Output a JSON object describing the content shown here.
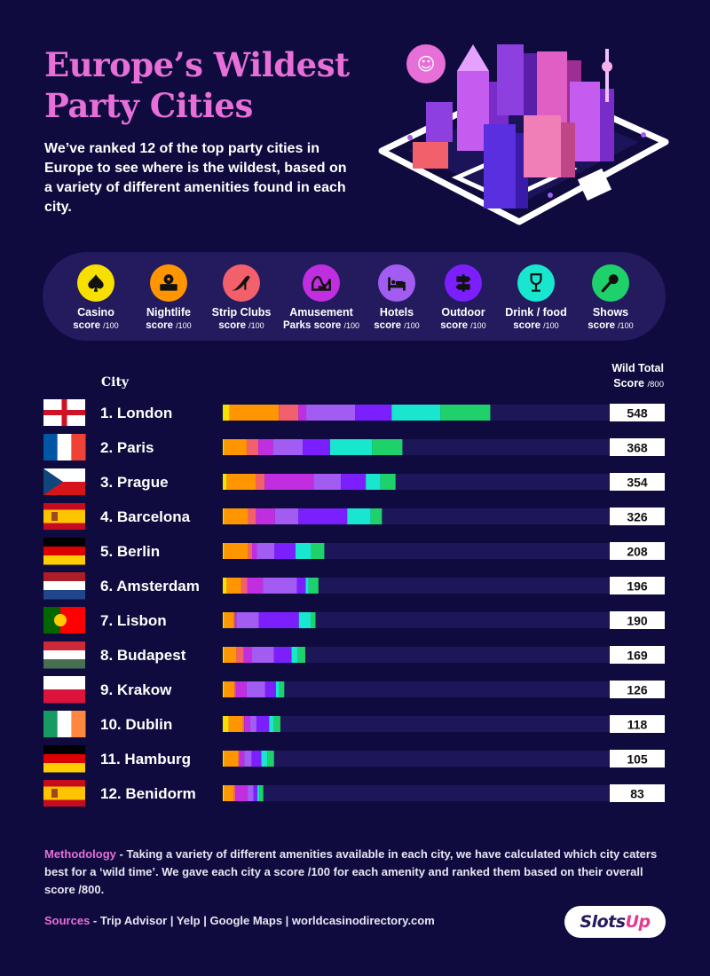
{
  "title": "Europe’s Wildest Party Cities",
  "intro": "We’ve ranked 12 of the top party cities in Europe to see where is the wildest, based on a variety of different amenities found in each city.",
  "legend": [
    {
      "label": "Casino",
      "score": "score",
      "unit": "/100",
      "color": "#f7e000",
      "icon": "spade-icon"
    },
    {
      "label": "Nightlife",
      "score": "score",
      "unit": "/100",
      "color": "#ff9500",
      "icon": "dj-decks-icon"
    },
    {
      "label": "Strip Clubs",
      "score": "score",
      "unit": "/100",
      "color": "#f2606c",
      "icon": "high-heel-icon"
    },
    {
      "label": "Amusement",
      "label2": "Parks",
      "score": "score",
      "unit": "/100",
      "color": "#c02ee0",
      "icon": "rollercoaster-icon"
    },
    {
      "label": "Hotels",
      "score": "score",
      "unit": "/100",
      "color": "#a25cf2",
      "icon": "bed-icon"
    },
    {
      "label": "Outdoor",
      "score": "score",
      "unit": "/100",
      "color": "#7b1fff",
      "icon": "signpost-icon"
    },
    {
      "label": "Drink / food",
      "score": "score",
      "unit": "/100",
      "color": "#19e6cf",
      "icon": "wine-glass-icon"
    },
    {
      "label": "Shows",
      "score": "score",
      "unit": "/100",
      "color": "#1fd16a",
      "icon": "microphone-icon"
    }
  ],
  "headers": {
    "city": "City",
    "total": "Wild Total",
    "total2": "Score",
    "total_unit": "/800"
  },
  "chart_data": {
    "type": "bar",
    "orientation": "horizontal",
    "stacked": true,
    "xlim": [
      0,
      800
    ],
    "series_names": [
      "Casino",
      "Nightlife",
      "Strip Clubs",
      "Amusement Parks",
      "Hotels",
      "Outdoor",
      "Drink / food",
      "Shows"
    ],
    "colors": [
      "#f7e000",
      "#ff9500",
      "#f2606c",
      "#c02ee0",
      "#a25cf2",
      "#7b1fff",
      "#19e6cf",
      "#1fd16a"
    ],
    "rows": [
      {
        "rank": "1.",
        "city": "London",
        "flag": "england",
        "total": "548",
        "values": [
          14,
          101,
          40,
          16,
          100,
          75,
          100,
          102
        ]
      },
      {
        "rank": "2.",
        "city": "Paris",
        "flag": "france",
        "total": "368",
        "values": [
          3,
          46,
          24,
          30,
          61,
          56,
          86,
          62
        ]
      },
      {
        "rank": "3.",
        "city": "Prague",
        "flag": "czech",
        "total": "354",
        "values": [
          8,
          60,
          18,
          100,
          56,
          51,
          30,
          31
        ]
      },
      {
        "rank": "4.",
        "city": "Barcelona",
        "flag": "spain",
        "total": "326",
        "values": [
          3,
          49,
          16,
          39,
          48,
          100,
          48,
          23
        ]
      },
      {
        "rank": "5.",
        "city": "Berlin",
        "flag": "germany",
        "total": "208",
        "values": [
          3,
          49,
          8,
          10,
          36,
          43,
          32,
          27
        ]
      },
      {
        "rank": "6.",
        "city": "Amsterdam",
        "flag": "netherlands",
        "total": "196",
        "values": [
          8,
          30,
          12,
          32,
          70,
          18,
          6,
          20
        ]
      },
      {
        "rank": "7.",
        "city": "Lisbon",
        "flag": "portugal",
        "total": "190",
        "values": [
          3,
          20,
          2,
          3,
          46,
          82,
          24,
          10
        ]
      },
      {
        "rank": "8.",
        "city": "Budapest",
        "flag": "hungary",
        "total": "169",
        "values": [
          3,
          25,
          15,
          17,
          45,
          36,
          13,
          15
        ]
      },
      {
        "rank": "9.",
        "city": "Krakow",
        "flag": "poland",
        "total": "126",
        "values": [
          3,
          21,
          3,
          22,
          38,
          22,
          7,
          10
        ]
      },
      {
        "rank": "10.",
        "city": "Dublin",
        "flag": "ireland",
        "total": "118",
        "values": [
          12,
          29,
          3,
          12,
          13,
          26,
          10,
          13
        ]
      },
      {
        "rank": "11.",
        "city": "Hamburg",
        "flag": "germany",
        "total": "105",
        "values": [
          3,
          29,
          2,
          10,
          15,
          20,
          12,
          14
        ]
      },
      {
        "rank": "12.",
        "city": "Benidorm",
        "flag": "spain",
        "total": "83",
        "values": [
          3,
          20,
          3,
          25,
          12,
          8,
          4,
          8
        ]
      }
    ]
  },
  "methodology_label": "Methodology",
  "methodology_text": " - Taking a variety of different amenities available in each city, we have calculated which city caters best for a ‘wild time’. We gave each city a score /100 for each amenity and ranked them based on their overall score /800.",
  "sources_label": "Sources",
  "sources_text": " - Trip Advisor | Yelp | Google Maps | worldcasinodirectory.com",
  "logo": {
    "part1": "Slots",
    "part2": "Up"
  }
}
